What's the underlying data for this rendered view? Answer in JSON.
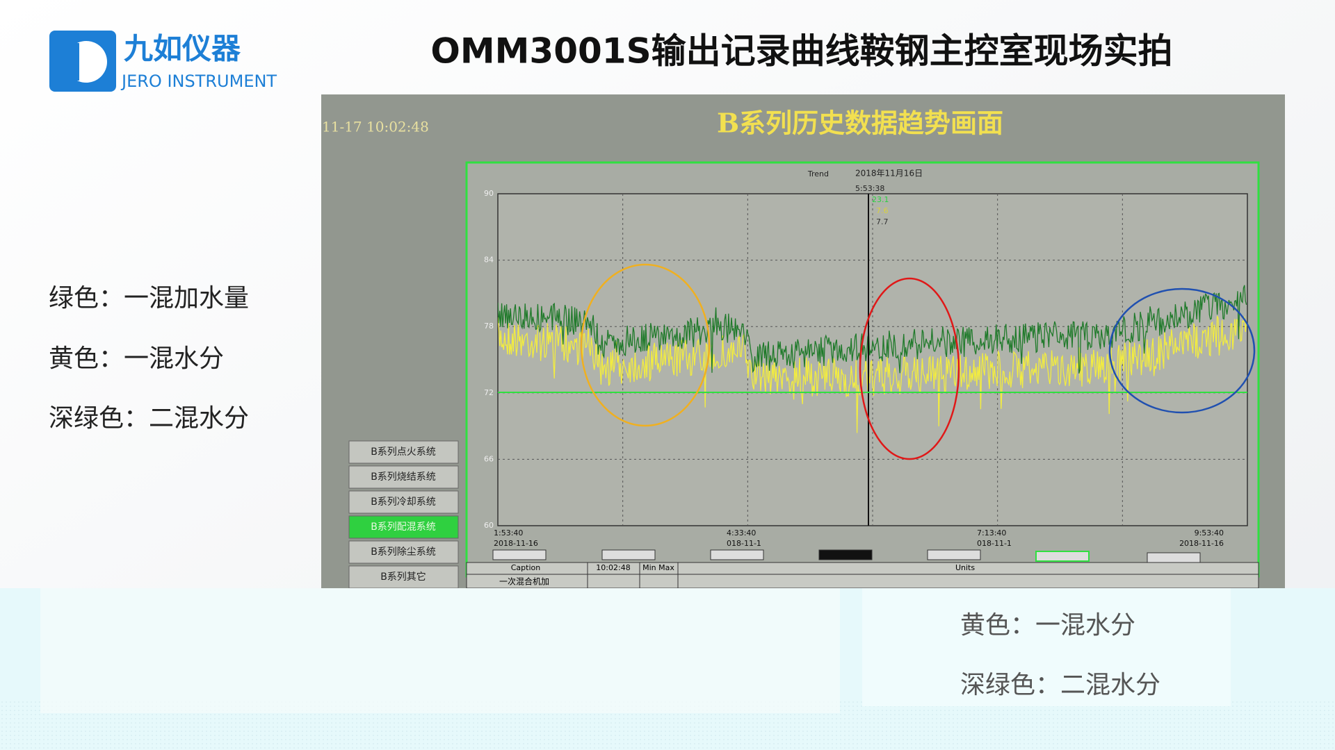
{
  "header": {
    "logo_name": "九如仪器",
    "logo_subtitle": "JERO INSTRUMENT",
    "title": "OMM3001S输出记录曲线鞍钢主控室现场实拍"
  },
  "legend": [
    "绿色：一混加水量",
    "黄色：一混水分",
    "深绿色：二混水分"
  ],
  "screen": {
    "timestamp": "11-17 10:02:48",
    "title": "B系列历史数据趋势画面",
    "trend_label": "Trend",
    "trend_date": "2018年11月16日",
    "trend_time": "5:53:38",
    "cursor_values": [
      "23.1",
      "7.6",
      "7.7"
    ],
    "yticks": [
      "90",
      "84",
      "78",
      "72",
      "66",
      "60"
    ],
    "time_labels": [
      {
        "time": "1:53:40",
        "date": "2018-11-16"
      },
      {
        "time": "4:33:40",
        "date": "018-11-1"
      },
      {
        "time": "7:13:40",
        "date": "018-11-1"
      },
      {
        "time": "9:53:40",
        "date": "2018-11-16"
      }
    ],
    "menu": [
      "B系列点火系统",
      "B系列烧结系统",
      "B系列冷却系统",
      "B系列配混系统",
      "B系列除尘系统",
      "B系列其它"
    ],
    "table": {
      "caption": "Caption",
      "time": "10:02:48",
      "minmax": "Min Max",
      "units": "Units",
      "row": "一次混合机加"
    }
  },
  "reflection_legend": [
    "黄色：一混水分",
    "深绿色：二混水分"
  ]
}
